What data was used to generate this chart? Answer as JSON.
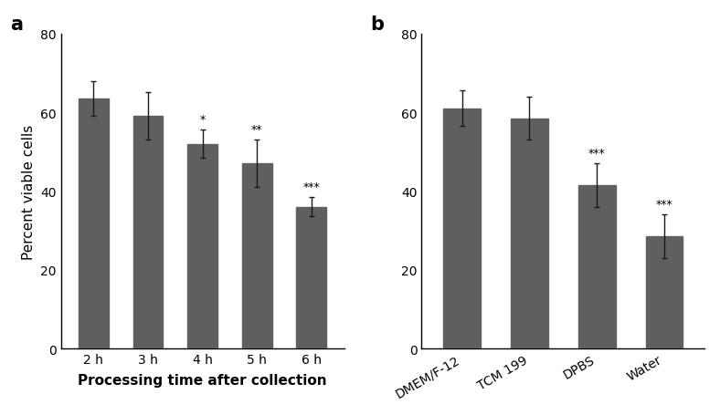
{
  "panel_a": {
    "categories": [
      "2 h",
      "3 h",
      "4 h",
      "5 h",
      "6 h"
    ],
    "values": [
      63.5,
      59.0,
      52.0,
      47.0,
      36.0
    ],
    "errors": [
      4.5,
      6.0,
      3.5,
      6.0,
      2.5
    ],
    "significance": [
      "",
      "",
      "*",
      "**",
      "***"
    ],
    "ylabel": "Percent viable cells",
    "xlabel": "Processing time after collection",
    "ylim": [
      0,
      80
    ],
    "yticks": [
      0,
      20,
      40,
      60,
      80
    ]
  },
  "panel_b": {
    "categories": [
      "DMEM/F-12",
      "TCM 199",
      "DPBS",
      "Water"
    ],
    "values": [
      61.0,
      58.5,
      41.5,
      28.5
    ],
    "errors": [
      4.5,
      5.5,
      5.5,
      5.5
    ],
    "significance": [
      "",
      "",
      "***",
      "***"
    ],
    "ylim": [
      0,
      80
    ],
    "yticks": [
      0,
      20,
      40,
      60,
      80
    ]
  },
  "bar_color": "#5f5f5f",
  "bar_width": 0.55,
  "error_color": "#1a1a1a",
  "sig_fontsize": 9,
  "label_fontsize": 11,
  "tick_fontsize": 10,
  "panel_label_fontsize": 15,
  "xlabel_fontsize": 11
}
